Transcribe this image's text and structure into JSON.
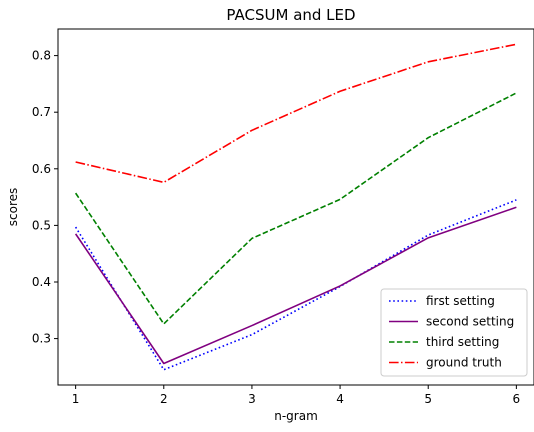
{
  "chart_data": {
    "type": "line",
    "title": "PACSUM and LED",
    "xlabel": "n-gram",
    "ylabel": "scores",
    "x": [
      1,
      2,
      3,
      4,
      5,
      6
    ],
    "xlim": [
      0.8,
      6.2
    ],
    "ylim": [
      0.218,
      0.847
    ],
    "xticks": [
      1,
      2,
      3,
      4,
      5,
      6
    ],
    "yticks": [
      0.3,
      0.4,
      0.5,
      0.6,
      0.7,
      0.8
    ],
    "xtick_labels": [
      "1",
      "2",
      "3",
      "4",
      "5",
      "6"
    ],
    "ytick_labels": [
      "0.3",
      "0.4",
      "0.5",
      "0.6",
      "0.7",
      "0.8"
    ],
    "grid": false,
    "legend_position": "bottom-right",
    "series": [
      {
        "name": "first setting",
        "values": [
          0.497,
          0.245,
          0.307,
          0.392,
          0.483,
          0.545
        ],
        "color": "#0000ff",
        "line_style": "dotted"
      },
      {
        "name": "second setting",
        "values": [
          0.485,
          0.256,
          0.323,
          0.393,
          0.478,
          0.532
        ],
        "color": "#800080",
        "line_style": "solid"
      },
      {
        "name": "third setting",
        "values": [
          0.557,
          0.326,
          0.477,
          0.546,
          0.655,
          0.734
        ],
        "color": "#008000",
        "line_style": "dashed"
      },
      {
        "name": "ground truth",
        "values": [
          0.612,
          0.576,
          0.668,
          0.737,
          0.789,
          0.82
        ],
        "color": "#ff0000",
        "line_style": "dashdot"
      }
    ]
  }
}
